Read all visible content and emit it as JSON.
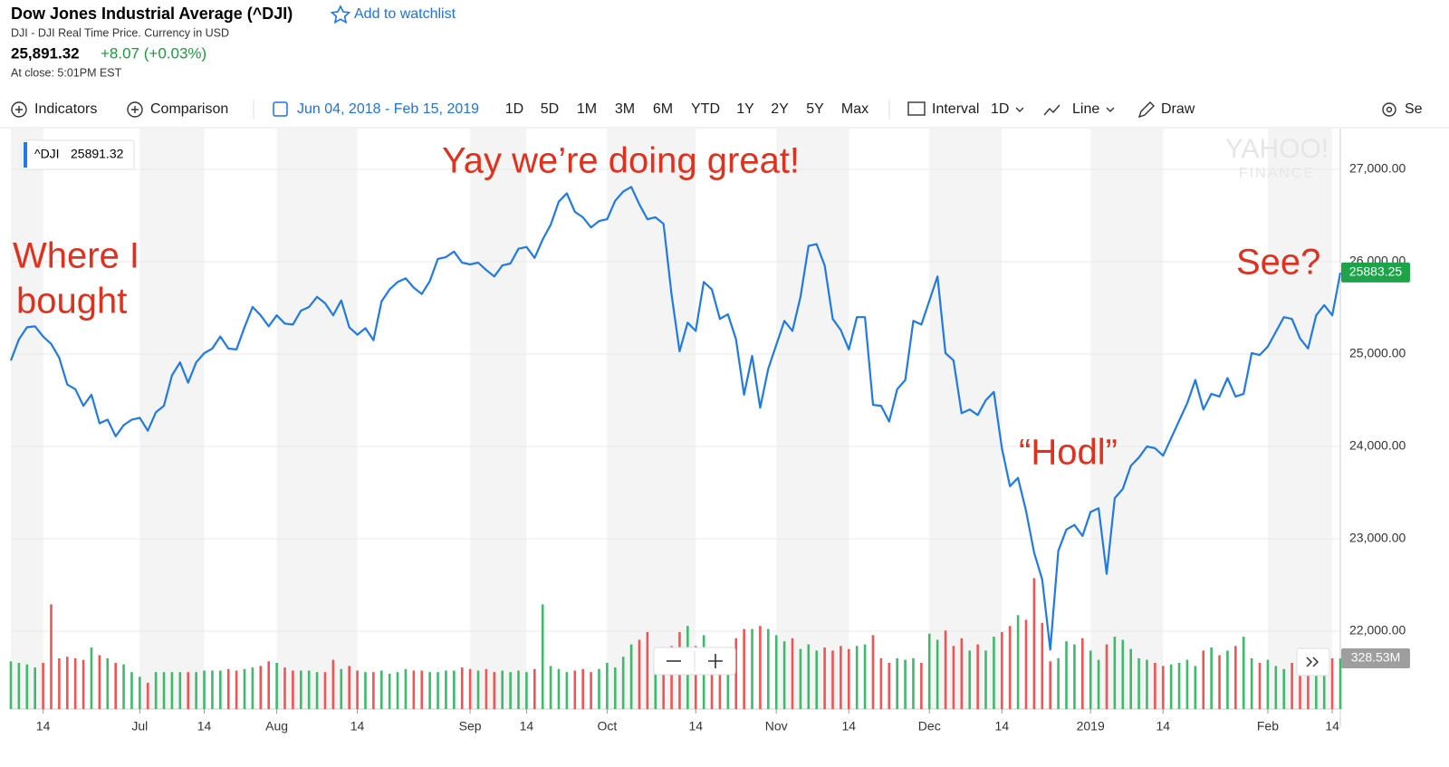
{
  "header": {
    "title": "Dow Jones Industrial Average (^DJI)",
    "watchlist": "Add to watchlist",
    "subtitle": "DJI - DJI Real Time Price. Currency in USD",
    "price": "25,891.32",
    "change": "+8.07 (+0.03%)",
    "close_time": "At close: 5:01PM EST"
  },
  "toolbar": {
    "indicators": "Indicators",
    "comparison": "Comparison",
    "date_range": "Jun 04, 2018 - Feb 15, 2019",
    "ranges": [
      "1D",
      "5D",
      "1M",
      "3M",
      "6M",
      "YTD",
      "1Y",
      "2Y",
      "5Y",
      "Max"
    ],
    "interval": "Interval",
    "interval_value": "1D",
    "chart_type": "Line",
    "draw": "Draw",
    "settings": "Se"
  },
  "watermark": [
    "YAHOO!",
    "FINANCE"
  ],
  "chart_data": {
    "type": "line",
    "categories": [
      null,
      null,
      null,
      null,
      "14",
      null,
      null,
      null,
      null,
      null,
      null,
      null,
      null,
      null,
      null,
      null,
      "Jul",
      null,
      null,
      null,
      null,
      null,
      null,
      null,
      "14",
      null,
      null,
      null,
      null,
      null,
      null,
      null,
      null,
      "Aug",
      null,
      null,
      null,
      null,
      null,
      null,
      null,
      null,
      null,
      "14",
      null,
      null,
      null,
      null,
      null,
      null,
      null,
      null,
      null,
      null,
      null,
      null,
      null,
      "Sep",
      null,
      null,
      null,
      null,
      null,
      null,
      "14",
      null,
      null,
      null,
      null,
      null,
      null,
      null,
      null,
      null,
      "Oct",
      null,
      null,
      null,
      null,
      null,
      null,
      null,
      null,
      null,
      null,
      "14",
      null,
      null,
      null,
      null,
      null,
      null,
      null,
      null,
      null,
      "Nov",
      null,
      null,
      null,
      null,
      null,
      null,
      null,
      null,
      "14",
      null,
      null,
      null,
      null,
      null,
      null,
      null,
      null,
      null,
      "Dec",
      null,
      null,
      null,
      null,
      null,
      null,
      null,
      null,
      "14",
      null,
      null,
      null,
      null,
      null,
      null,
      null,
      null,
      null,
      null,
      "2019",
      null,
      null,
      null,
      null,
      null,
      null,
      null,
      null,
      "14",
      null,
      null,
      null,
      null,
      null,
      null,
      null,
      null,
      null,
      null,
      null,
      null,
      "Feb",
      null,
      null,
      null,
      null,
      null,
      null,
      null,
      "14",
      null
    ],
    "series": [
      {
        "name": "^DJI",
        "color": "#1f7ae6",
        "values": [
          24930,
          25160,
          25290,
          25300,
          25190,
          25110,
          24960,
          24670,
          24620,
          24440,
          24560,
          24250,
          24290,
          24110,
          24230,
          24290,
          24310,
          24170,
          24370,
          24440,
          24770,
          24910,
          24690,
          24910,
          25010,
          25060,
          25190,
          25060,
          25050,
          25290,
          25510,
          25420,
          25300,
          25420,
          25330,
          25320,
          25470,
          25510,
          25620,
          25550,
          25420,
          25580,
          25290,
          25210,
          25280,
          25150,
          25570,
          25700,
          25780,
          25820,
          25720,
          25650,
          25790,
          26030,
          26050,
          26110,
          25990,
          25970,
          25990,
          25910,
          25840,
          25960,
          25980,
          26140,
          26160,
          26040,
          26240,
          26400,
          26650,
          26740,
          26540,
          26480,
          26370,
          26440,
          26460,
          26660,
          26760,
          26810,
          26620,
          26460,
          26480,
          26410,
          25640,
          25030,
          25340,
          25250,
          25780,
          25700,
          25380,
          25430,
          25160,
          24560,
          24980,
          24420,
          24840,
          25100,
          25360,
          25250,
          25620,
          26170,
          26190,
          25960,
          25380,
          25260,
          25050,
          25400,
          25400,
          24450,
          24440,
          24270,
          24620,
          24720,
          25360,
          25320,
          25580,
          25840,
          25010,
          24930,
          24360,
          24400,
          24340,
          24500,
          24590,
          23980,
          23570,
          23660,
          23300,
          22850,
          22560,
          21800,
          22870,
          23100,
          23150,
          23030,
          23290,
          23330,
          22620,
          23440,
          23540,
          23790,
          23880,
          24000,
          23980,
          23900,
          24090,
          24280,
          24470,
          24720,
          24400,
          24570,
          24540,
          24740,
          24540,
          24570,
          25010,
          24990,
          25080,
          25240,
          25400,
          25380,
          25170,
          25060,
          25420,
          25530,
          25420,
          25880
        ]
      }
    ],
    "legend_value": 25891.32,
    "ylim": [
      21157,
      27441
    ],
    "yticks": [
      {
        "value": 22000,
        "label": "22,000.00"
      },
      {
        "value": 23000,
        "label": "23,000.00"
      },
      {
        "value": 24000,
        "label": "24,000.00"
      },
      {
        "value": 25000,
        "label": "25,000.00"
      },
      {
        "value": 26000,
        "label": "26,000.00"
      },
      {
        "value": 27000,
        "label": "27,000.00"
      }
    ],
    "grid": true,
    "last_price": 25883.25,
    "last_price_color": "#1fa34a",
    "volume": {
      "values": [
        310,
        300,
        290,
        270,
        300,
        680,
        330,
        340,
        330,
        320,
        400,
        350,
        330,
        300,
        290,
        240,
        210,
        170,
        240,
        240,
        240,
        240,
        240,
        240,
        250,
        250,
        250,
        260,
        250,
        260,
        270,
        280,
        310,
        300,
        270,
        250,
        250,
        250,
        240,
        240,
        320,
        260,
        280,
        250,
        240,
        240,
        250,
        230,
        240,
        260,
        250,
        250,
        240,
        240,
        250,
        250,
        270,
        260,
        250,
        260,
        240,
        250,
        240,
        250,
        240,
        260,
        680,
        280,
        260,
        240,
        250,
        260,
        240,
        260,
        300,
        270,
        340,
        420,
        450,
        500,
        320,
        330,
        410,
        500,
        540,
        410,
        480,
        330,
        300,
        330,
        460,
        520,
        520,
        540,
        520,
        480,
        440,
        460,
        390,
        420,
        380,
        400,
        380,
        410,
        390,
        410,
        420,
        480,
        330,
        300,
        330,
        320,
        330,
        300,
        490,
        450,
        510,
        410,
        460,
        380,
        420,
        380,
        470,
        500,
        540,
        610,
        580,
        850,
        560,
        310,
        330,
        440,
        420,
        460,
        380,
        320,
        420,
        470,
        450,
        390,
        330,
        320,
        300,
        280,
        290,
        300,
        320,
        280,
        380,
        400,
        350,
        380,
        410,
        470,
        330,
        300,
        320,
        280,
        260,
        300,
        330,
        280,
        290,
        300,
        330,
        328.53
      ],
      "label": "328.53M",
      "up_color": "#3fb96b",
      "down_color": "#f05454"
    },
    "annotations": [
      {
        "lines": [
          "Where I",
          "bought"
        ]
      },
      {
        "lines": [
          "Yay we’re doing great!"
        ]
      },
      {
        "lines": [
          "“Hodl”"
        ]
      },
      {
        "lines": [
          "See?"
        ]
      }
    ],
    "annotation_color": "#e0301e"
  }
}
